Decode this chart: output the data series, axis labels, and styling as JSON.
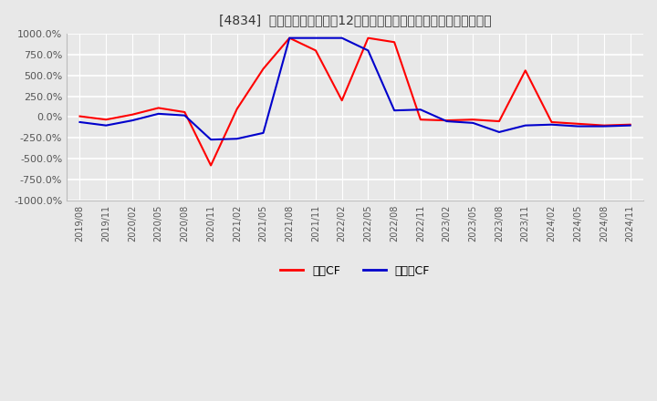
{
  "title": "[4834]  キャッシュフローの12か月移動合計の対前年同期増減率の推移",
  "ylim": [
    -1000,
    1000
  ],
  "yticks": [
    -1000,
    -750,
    -500,
    -250,
    0,
    250,
    500,
    750,
    1000
  ],
  "ytick_labels": [
    "-1000.0%",
    "-750.0%",
    "-500.0%",
    "-250.0%",
    "0.0%",
    "250.0%",
    "500.0%",
    "750.0%",
    "1000.0%"
  ],
  "legend_labels": [
    "営業CF",
    "フリーCF"
  ],
  "line_colors": [
    "#ff0000",
    "#0000cc"
  ],
  "background_color": "#e8e8e8",
  "grid_color": "#ffffff",
  "dates": [
    "2019/08",
    "2019/11",
    "2020/02",
    "2020/05",
    "2020/08",
    "2020/11",
    "2021/02",
    "2021/05",
    "2021/08",
    "2021/11",
    "2022/02",
    "2022/05",
    "2022/08",
    "2022/11",
    "2023/02",
    "2023/05",
    "2023/08",
    "2023/11",
    "2024/02",
    "2024/05",
    "2024/08",
    "2024/11"
  ],
  "operating_cf": [
    10,
    -30,
    30,
    110,
    60,
    -580,
    100,
    580,
    950,
    800,
    200,
    950,
    900,
    -30,
    -40,
    -30,
    -50,
    560,
    -60,
    -80,
    -100,
    -90
  ],
  "free_cf": [
    -60,
    -100,
    -40,
    40,
    20,
    -270,
    -260,
    -190,
    950,
    950,
    950,
    800,
    80,
    90,
    -50,
    -70,
    -180,
    -100,
    -90,
    -110,
    -110,
    -100
  ]
}
